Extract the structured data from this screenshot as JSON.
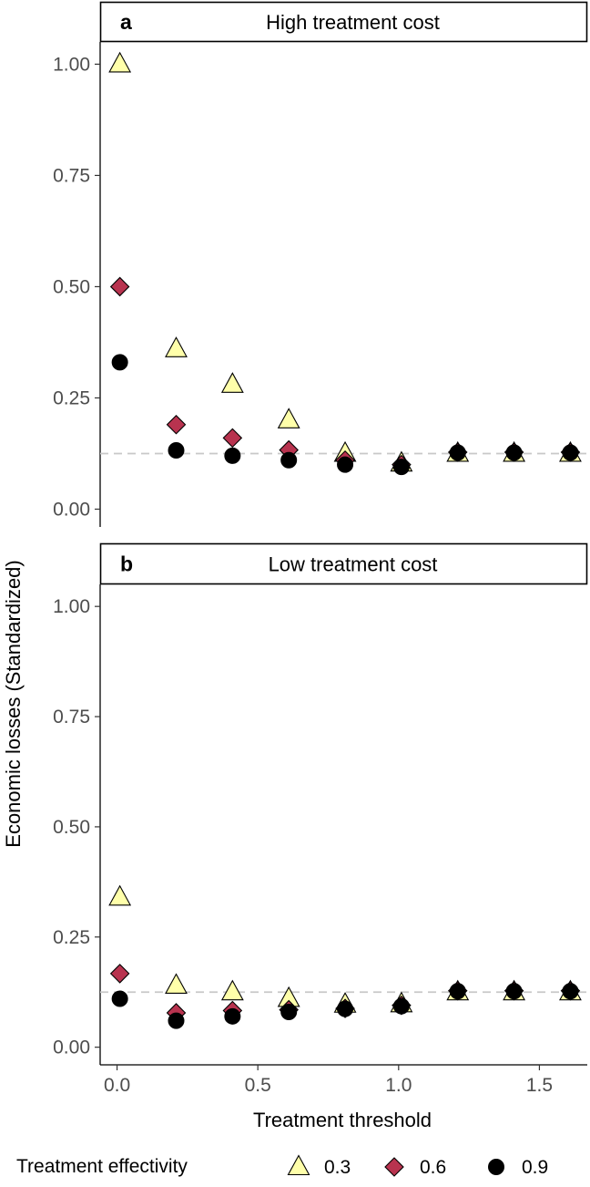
{
  "chart_data": {
    "type": "scatter",
    "xlabel": "Treatment threshold",
    "ylabel": "Economic losses (Standardized)",
    "xlim": [
      -0.06,
      1.67
    ],
    "ylim": [
      -0.04,
      1.05
    ],
    "x_ticks": [
      0.0,
      0.5,
      1.0,
      1.5
    ],
    "x_tick_labels": [
      "0.0",
      "0.5",
      "1.0",
      "1.5"
    ],
    "y_ticks": [
      0.0,
      0.25,
      0.5,
      0.75,
      1.0
    ],
    "y_tick_labels": [
      "0.00",
      "0.25",
      "0.50",
      "0.75",
      "1.00"
    ],
    "reference_line": 0.125,
    "legend": {
      "title": "Treatment effectivity",
      "position": "bottom",
      "entries": [
        {
          "label": "0.3",
          "shape": "triangle",
          "color": "#FFFFAA"
        },
        {
          "label": "0.6",
          "shape": "diamond",
          "color": "#B8334F"
        },
        {
          "label": "0.9",
          "shape": "circle",
          "color": "#000000"
        }
      ]
    },
    "panels": [
      {
        "tag": "a",
        "title": "High treatment cost",
        "x": [
          0.01,
          0.21,
          0.41,
          0.61,
          0.81,
          1.01,
          1.21,
          1.41,
          1.61
        ],
        "series": [
          {
            "name": "0.3",
            "values": [
              1.0,
              0.36,
              0.28,
              0.2,
              0.125,
              0.103,
              0.125,
              0.125,
              0.125
            ]
          },
          {
            "name": "0.6",
            "values": [
              0.5,
              0.19,
              0.16,
              0.133,
              0.11,
              0.1,
              0.128,
              0.128,
              0.128
            ]
          },
          {
            "name": "0.9",
            "values": [
              0.33,
              0.132,
              0.12,
              0.11,
              0.1,
              0.095,
              0.127,
              0.127,
              0.127
            ]
          }
        ]
      },
      {
        "tag": "b",
        "title": "Low treatment cost",
        "x": [
          0.01,
          0.21,
          0.41,
          0.61,
          0.81,
          1.01,
          1.21,
          1.41,
          1.61
        ],
        "series": [
          {
            "name": "0.3",
            "values": [
              0.34,
              0.14,
              0.125,
              0.11,
              0.097,
              0.098,
              0.125,
              0.125,
              0.125
            ]
          },
          {
            "name": "0.6",
            "values": [
              0.167,
              0.078,
              0.083,
              0.085,
              0.088,
              0.095,
              0.128,
              0.128,
              0.128
            ]
          },
          {
            "name": "0.9",
            "values": [
              0.11,
              0.06,
              0.07,
              0.08,
              0.087,
              0.093,
              0.127,
              0.127,
              0.127
            ]
          }
        ]
      }
    ]
  }
}
